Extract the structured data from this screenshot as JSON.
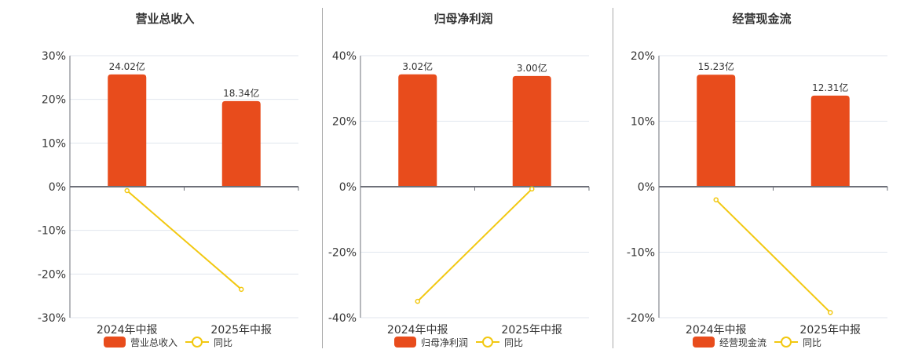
{
  "colors": {
    "bar": "#e84c1c",
    "line": "#f2c811",
    "grid": "#e0e6ee",
    "axis": "#6e7079",
    "separator": "#a8a8a8"
  },
  "chart_data": [
    {
      "type": "bar+line",
      "title": "营业总收入",
      "categories": [
        "2024年中报",
        "2025年中报"
      ],
      "series": [
        {
          "name": "营业总收入",
          "type": "bar",
          "labels": [
            "24.02亿",
            "18.34亿"
          ],
          "bar_heights_pct_axis": [
            25.7,
            19.6
          ]
        },
        {
          "name": "同比",
          "type": "line",
          "values": [
            -0.9,
            -23.5
          ]
        }
      ],
      "yticks": [
        "30%",
        "20%",
        "10%",
        "0%",
        "-10%",
        "-20%",
        "-30%"
      ],
      "ylim": [
        -30,
        30
      ],
      "grid": true,
      "legend_position": "bottom"
    },
    {
      "type": "bar+line",
      "title": "归母净利润",
      "categories": [
        "2024年中报",
        "2025年中报"
      ],
      "series": [
        {
          "name": "归母净利润",
          "type": "bar",
          "labels": [
            "3.02亿",
            "3.00亿"
          ],
          "bar_heights_pct_axis": [
            34.3,
            33.8
          ]
        },
        {
          "name": "同比",
          "type": "line",
          "values": [
            -35.0,
            -0.7
          ]
        }
      ],
      "yticks": [
        "40%",
        "20%",
        "0%",
        "-20%",
        "-40%"
      ],
      "ylim": [
        -40,
        40
      ],
      "grid": true,
      "legend_position": "bottom"
    },
    {
      "type": "bar+line",
      "title": "经营现金流",
      "categories": [
        "2024年中报",
        "2025年中报"
      ],
      "series": [
        {
          "name": "经营现金流",
          "type": "bar",
          "labels": [
            "15.23亿",
            "12.31亿"
          ],
          "bar_heights_pct_axis": [
            17.1,
            13.9
          ]
        },
        {
          "name": "同比",
          "type": "line",
          "values": [
            -2.0,
            -19.2
          ]
        }
      ],
      "yticks": [
        "20%",
        "10%",
        "0%",
        "-10%",
        "-20%"
      ],
      "ylim": [
        -20,
        20
      ],
      "grid": true,
      "legend_position": "bottom"
    }
  ]
}
